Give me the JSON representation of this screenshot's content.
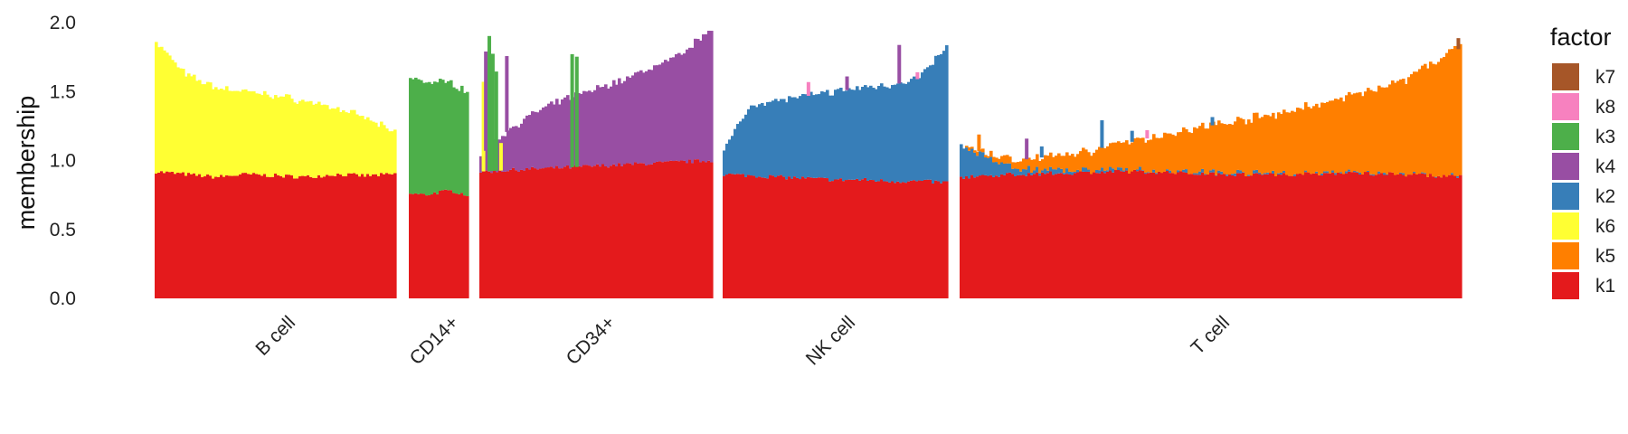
{
  "chart_data": {
    "type": "area",
    "ylabel": "membership",
    "ylim": [
      0,
      2.0
    ],
    "yticks": [
      "0.0",
      "0.5",
      "1.0",
      "1.5",
      "2.0"
    ],
    "legend": {
      "title": "factor",
      "position": "right",
      "order": [
        "k7",
        "k8",
        "k3",
        "k4",
        "k2",
        "k6",
        "k5",
        "k1"
      ]
    },
    "factor_colors": {
      "k1": "#E41A1C",
      "k2": "#377EB8",
      "k3": "#4DAF4A",
      "k4": "#984EA3",
      "k5": "#FF7F00",
      "k6": "#FFFF33",
      "k7": "#A65628",
      "k8": "#F781BF"
    },
    "groups": [
      {
        "name": "B cell",
        "k1": [
          0.92,
          0.9,
          0.88,
          0.9,
          0.89,
          0.88,
          0.9,
          0.89,
          0.9
        ],
        "stack": [
          [
            "k6",
            [
              0.94,
              0.72,
              0.65,
              0.6,
              0.58,
              0.55,
              0.48,
              0.42,
              0.3
            ]
          ]
        ],
        "spikes": []
      },
      {
        "name": "CD14+",
        "k1": [
          0.76,
          0.75,
          0.77,
          0.78,
          0.75
        ],
        "stack": [
          [
            "k3",
            [
              0.85,
              0.82,
              0.8,
              0.78,
              0.75
            ]
          ]
        ],
        "spikes": []
      },
      {
        "name": "CD34+",
        "k1": [
          0.92,
          0.93,
          0.94,
          0.95,
          0.96,
          0.97,
          0.98,
          0.99,
          1.0
        ],
        "stack": [
          [
            "k4",
            [
              0.12,
              0.3,
              0.42,
              0.5,
              0.56,
              0.62,
              0.7,
              0.78,
              0.97
            ]
          ]
        ],
        "spikes": [
          {
            "pos": 0.01,
            "factor": "k6",
            "height": 0.65
          },
          {
            "pos": 0.02,
            "factor": "k4",
            "height": 0.72
          },
          {
            "pos": 0.035,
            "factor": "k3",
            "height": 0.98
          },
          {
            "pos": 0.05,
            "factor": "k3",
            "height": 0.85
          },
          {
            "pos": 0.065,
            "factor": "k3",
            "height": 0.72
          },
          {
            "pos": 0.085,
            "factor": "k6",
            "height": 0.2
          },
          {
            "pos": 0.11,
            "factor": "k4",
            "height": 0.55
          },
          {
            "pos": 0.39,
            "factor": "k3",
            "height": 0.82
          },
          {
            "pos": 0.41,
            "factor": "k3",
            "height": 0.8
          }
        ]
      },
      {
        "name": "NK cell",
        "k1": [
          0.9,
          0.89,
          0.88,
          0.87,
          0.86,
          0.86,
          0.85,
          0.85,
          0.84
        ],
        "stack": [
          [
            "k2",
            [
              0.18,
              0.52,
              0.56,
              0.6,
              0.64,
              0.67,
              0.7,
              0.75,
              0.98
            ]
          ]
        ],
        "spikes": [
          {
            "pos": 0.37,
            "factor": "k8",
            "height": 0.1
          },
          {
            "pos": 0.54,
            "factor": "k4",
            "height": 0.1
          },
          {
            "pos": 0.77,
            "factor": "k4",
            "height": 0.28
          },
          {
            "pos": 0.85,
            "factor": "k8",
            "height": 0.05
          }
        ]
      },
      {
        "name": "T cell",
        "k1": [
          0.88,
          0.9,
          0.91,
          0.92,
          0.91,
          0.9,
          0.9,
          0.91,
          0.9,
          0.88
        ],
        "stack": [
          [
            "k2",
            [
              0.22,
              0.04,
              0.02,
              0.01,
              0.01,
              0.01,
              0.0,
              0.0,
              0.0,
              0.0
            ]
          ],
          [
            "k5",
            [
              0.0,
              0.06,
              0.12,
              0.2,
              0.3,
              0.38,
              0.46,
              0.55,
              0.68,
              0.95
            ]
          ]
        ],
        "spikes": [
          {
            "pos": 0.035,
            "factor": "k5",
            "height": 0.12
          },
          {
            "pos": 0.13,
            "factor": "k4",
            "height": 0.15
          },
          {
            "pos": 0.16,
            "factor": "k2",
            "height": 0.08
          },
          {
            "pos": 0.28,
            "factor": "k2",
            "height": 0.2
          },
          {
            "pos": 0.34,
            "factor": "k2",
            "height": 0.08
          },
          {
            "pos": 0.37,
            "factor": "k8",
            "height": 0.06
          },
          {
            "pos": 0.5,
            "factor": "k2",
            "height": 0.06
          },
          {
            "pos": 0.99,
            "factor": "k7",
            "height": 0.08
          }
        ]
      }
    ]
  }
}
